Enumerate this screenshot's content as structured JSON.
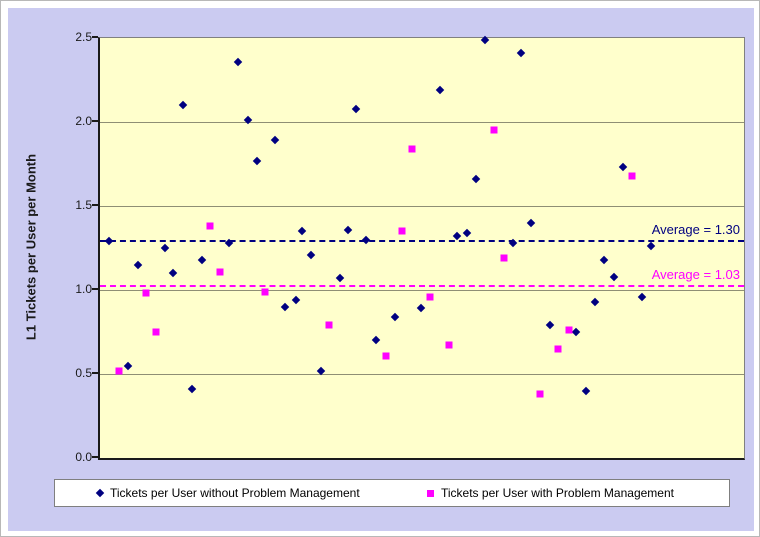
{
  "colors": {
    "panel_bg": "#cbcbf1",
    "plot_bg": "#ffffcc",
    "gridline": "#8f8f74",
    "axis": "#1a1a1a",
    "series_without_pm": "#000080",
    "series_with_pm": "#ff00ff"
  },
  "chart_data": {
    "type": "scatter",
    "title": "",
    "xlabel": "",
    "ylabel": "L1 Tickets per User per Month",
    "ylim": [
      0,
      2.5
    ],
    "yticks": [
      {
        "label": "2.5",
        "value": 2.5
      },
      {
        "label": "2.0",
        "value": 2.0
      },
      {
        "label": "1.5",
        "value": 1.5
      },
      {
        "label": "1.0",
        "value": 1.0
      },
      {
        "label": "0.5",
        "value": 0.5
      },
      {
        "label": "0.0",
        "value": 0.0
      }
    ],
    "gridline_values": [
      0.5,
      1.0,
      1.5,
      2.0
    ],
    "grid": "horizontal major gridlines every 0.5",
    "legend_position": "bottom",
    "x_axis_note": "x positions are unlabeled sample positions, stored as fraction 0-1 of plot width",
    "series": [
      {
        "name": "Tickets per User without Problem Management",
        "marker": "diamond",
        "color": "#000080",
        "average": 1.3,
        "average_label": "Average = 1.30",
        "points": [
          [
            0.014,
            1.29
          ],
          [
            0.043,
            0.55
          ],
          [
            0.059,
            1.15
          ],
          [
            0.101,
            1.25
          ],
          [
            0.113,
            1.1
          ],
          [
            0.129,
            2.1
          ],
          [
            0.143,
            0.41
          ],
          [
            0.158,
            1.18
          ],
          [
            0.2,
            1.28
          ],
          [
            0.214,
            2.36
          ],
          [
            0.23,
            2.01
          ],
          [
            0.244,
            1.77
          ],
          [
            0.272,
            1.89
          ],
          [
            0.287,
            0.9
          ],
          [
            0.304,
            0.94
          ],
          [
            0.314,
            1.35
          ],
          [
            0.328,
            1.21
          ],
          [
            0.343,
            0.52
          ],
          [
            0.373,
            1.07
          ],
          [
            0.385,
            1.36
          ],
          [
            0.398,
            2.08
          ],
          [
            0.413,
            1.3
          ],
          [
            0.429,
            0.7
          ],
          [
            0.458,
            0.84
          ],
          [
            0.498,
            0.89
          ],
          [
            0.528,
            2.19
          ],
          [
            0.554,
            1.32
          ],
          [
            0.57,
            1.34
          ],
          [
            0.584,
            1.66
          ],
          [
            0.598,
            2.49
          ],
          [
            0.641,
            1.28
          ],
          [
            0.654,
            2.41
          ],
          [
            0.669,
            1.4
          ],
          [
            0.699,
            0.79
          ],
          [
            0.739,
            0.75
          ],
          [
            0.755,
            0.4
          ],
          [
            0.769,
            0.93
          ],
          [
            0.783,
            1.18
          ],
          [
            0.798,
            1.08
          ],
          [
            0.812,
            1.73
          ],
          [
            0.842,
            0.96
          ],
          [
            0.856,
            1.26
          ]
        ]
      },
      {
        "name": "Tickets per User with Problem Management",
        "marker": "square",
        "color": "#ff00ff",
        "average": 1.03,
        "average_label": "Average = 1.03",
        "points": [
          [
            0.03,
            0.52
          ],
          [
            0.071,
            0.98
          ],
          [
            0.087,
            0.75
          ],
          [
            0.171,
            1.38
          ],
          [
            0.186,
            1.11
          ],
          [
            0.256,
            0.99
          ],
          [
            0.356,
            0.79
          ],
          [
            0.444,
            0.61
          ],
          [
            0.469,
            1.35
          ],
          [
            0.484,
            1.84
          ],
          [
            0.512,
            0.96
          ],
          [
            0.542,
            0.67
          ],
          [
            0.612,
            1.95
          ],
          [
            0.627,
            1.19
          ],
          [
            0.683,
            0.38
          ],
          [
            0.711,
            0.65
          ],
          [
            0.728,
            0.76
          ],
          [
            0.826,
            1.68
          ]
        ]
      }
    ]
  }
}
